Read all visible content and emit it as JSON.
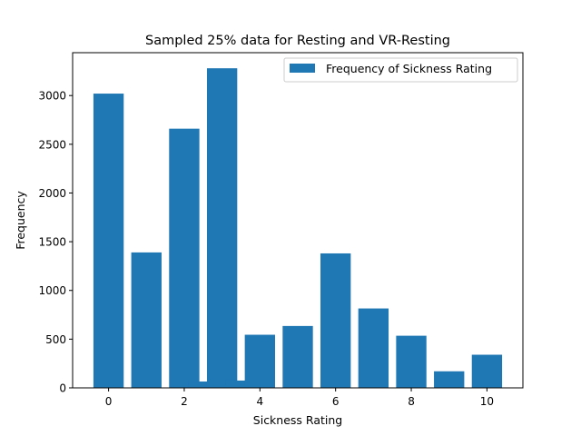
{
  "chart_data": {
    "type": "bar",
    "title": "Sampled 25% data for Resting and VR-Resting",
    "xlabel": "Sickness Rating",
    "ylabel": "Frequency",
    "xlim": [
      -0.95,
      10.95
    ],
    "ylim": [
      0,
      3440
    ],
    "xticks": [
      0,
      2,
      4,
      6,
      8,
      10
    ],
    "yticks": [
      0,
      500,
      1000,
      1500,
      2000,
      2500,
      3000
    ],
    "bar_width": 0.8,
    "series": [
      {
        "name": "Frequency of Sickness Rating",
        "color": "#1f77b4",
        "x": [
          0,
          1,
          2,
          2.5,
          3,
          3.5,
          4,
          5,
          6,
          7,
          8,
          9,
          10
        ],
        "values": [
          3020,
          1390,
          2660,
          65,
          3280,
          75,
          545,
          635,
          1380,
          815,
          535,
          170,
          340
        ]
      }
    ],
    "legend": {
      "position": "top-right"
    },
    "grid": false
  }
}
